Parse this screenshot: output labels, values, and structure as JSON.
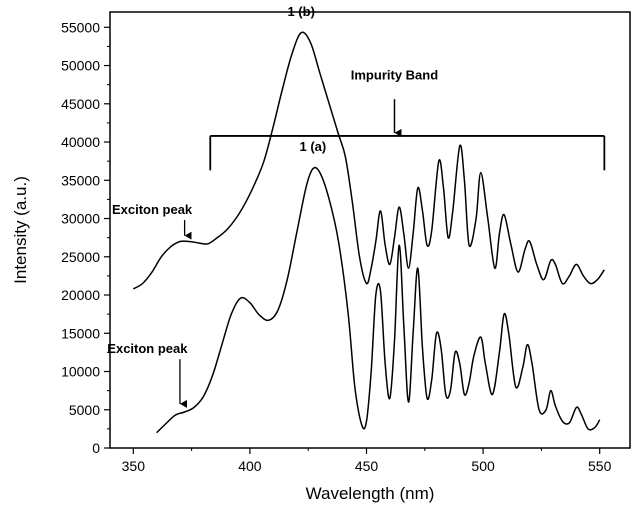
{
  "chart_data": {
    "type": "line",
    "xlabel": "Wavelength (nm)",
    "ylabel": "Intensity (a.u.)",
    "xlim": [
      340,
      563
    ],
    "ylim": [
      0,
      57000
    ],
    "x_ticks": [
      350,
      400,
      450,
      500,
      550
    ],
    "y_ticks": [
      0,
      5000,
      10000,
      15000,
      20000,
      25000,
      30000,
      35000,
      40000,
      45000,
      50000,
      55000
    ],
    "grid": false,
    "series": [
      {
        "name": "1 (a)",
        "points": [
          [
            360,
            2000
          ],
          [
            364,
            3200
          ],
          [
            368,
            4300
          ],
          [
            372,
            4700
          ],
          [
            376,
            5300
          ],
          [
            380,
            6700
          ],
          [
            384,
            9500
          ],
          [
            388,
            13500
          ],
          [
            392,
            17500
          ],
          [
            396,
            19600
          ],
          [
            400,
            19000
          ],
          [
            404,
            17400
          ],
          [
            408,
            16700
          ],
          [
            412,
            18000
          ],
          [
            416,
            22000
          ],
          [
            420,
            28000
          ],
          [
            424,
            34000
          ],
          [
            427,
            36500
          ],
          [
            430,
            36000
          ],
          [
            434,
            32500
          ],
          [
            438,
            27000
          ],
          [
            442,
            18000
          ],
          [
            445,
            8000
          ],
          [
            448,
            3000
          ],
          [
            450,
            3500
          ],
          [
            452,
            10000
          ],
          [
            454,
            20000
          ],
          [
            456,
            20500
          ],
          [
            458,
            11000
          ],
          [
            460,
            6500
          ],
          [
            462,
            14000
          ],
          [
            464,
            26500
          ],
          [
            466,
            16000
          ],
          [
            468,
            6000
          ],
          [
            470,
            15000
          ],
          [
            472,
            23500
          ],
          [
            474,
            13000
          ],
          [
            476,
            6500
          ],
          [
            478,
            9000
          ],
          [
            480,
            15000
          ],
          [
            482,
            13000
          ],
          [
            484,
            7000
          ],
          [
            486,
            7500
          ],
          [
            488,
            12500
          ],
          [
            490,
            11000
          ],
          [
            492,
            7000
          ],
          [
            494,
            8500
          ],
          [
            496,
            12000
          ],
          [
            499,
            14500
          ],
          [
            501,
            11000
          ],
          [
            504,
            7000
          ],
          [
            507,
            12500
          ],
          [
            509,
            17500
          ],
          [
            511,
            15000
          ],
          [
            514,
            8000
          ],
          [
            517,
            10500
          ],
          [
            519,
            13500
          ],
          [
            521,
            11000
          ],
          [
            524,
            5000
          ],
          [
            527,
            5000
          ],
          [
            529,
            7500
          ],
          [
            531,
            5500
          ],
          [
            534,
            3500
          ],
          [
            537,
            3300
          ],
          [
            540,
            5300
          ],
          [
            542,
            4500
          ],
          [
            545,
            2500
          ],
          [
            548,
            2700
          ],
          [
            550,
            3700
          ]
        ]
      },
      {
        "name": "1 (b)",
        "points": [
          [
            350,
            20800
          ],
          [
            354,
            21500
          ],
          [
            358,
            23000
          ],
          [
            362,
            25000
          ],
          [
            366,
            26300
          ],
          [
            370,
            27000
          ],
          [
            374,
            27000
          ],
          [
            378,
            26800
          ],
          [
            382,
            26700
          ],
          [
            386,
            27500
          ],
          [
            390,
            28500
          ],
          [
            394,
            30000
          ],
          [
            398,
            32000
          ],
          [
            402,
            34500
          ],
          [
            406,
            37500
          ],
          [
            410,
            42000
          ],
          [
            414,
            47000
          ],
          [
            418,
            51500
          ],
          [
            422,
            54300
          ],
          [
            426,
            53000
          ],
          [
            430,
            49000
          ],
          [
            434,
            45000
          ],
          [
            438,
            41000
          ],
          [
            441,
            38000
          ],
          [
            444,
            32000
          ],
          [
            447,
            25000
          ],
          [
            450,
            21500
          ],
          [
            452,
            23500
          ],
          [
            454,
            27000
          ],
          [
            456,
            31000
          ],
          [
            458,
            26500
          ],
          [
            460,
            24000
          ],
          [
            462,
            27500
          ],
          [
            464,
            31500
          ],
          [
            466,
            28000
          ],
          [
            468,
            23500
          ],
          [
            470,
            28000
          ],
          [
            472,
            34000
          ],
          [
            474,
            31000
          ],
          [
            476,
            26500
          ],
          [
            478,
            28500
          ],
          [
            481,
            37500
          ],
          [
            483,
            34000
          ],
          [
            485,
            27500
          ],
          [
            487,
            31000
          ],
          [
            490,
            39500
          ],
          [
            492,
            35000
          ],
          [
            494,
            26500
          ],
          [
            497,
            30000
          ],
          [
            499,
            36000
          ],
          [
            502,
            30000
          ],
          [
            505,
            23500
          ],
          [
            507,
            28000
          ],
          [
            509,
            30500
          ],
          [
            512,
            26500
          ],
          [
            515,
            23000
          ],
          [
            518,
            26000
          ],
          [
            520,
            27000
          ],
          [
            523,
            24000
          ],
          [
            526,
            22000
          ],
          [
            529,
            24500
          ],
          [
            531,
            24000
          ],
          [
            534,
            21500
          ],
          [
            537,
            22500
          ],
          [
            540,
            24000
          ],
          [
            543,
            22500
          ],
          [
            546,
            21500
          ],
          [
            549,
            22000
          ],
          [
            552,
            23300
          ]
        ]
      }
    ],
    "annotations": [
      {
        "text": "1 (b)",
        "x": 422,
        "y": 56500
      },
      {
        "text": "1 (a)",
        "x": 427,
        "y": 38800
      },
      {
        "text": "Impurity Band",
        "x": 462,
        "y": 48200
      },
      {
        "text": "Exciton peak",
        "x": 364,
        "y": 30600,
        "arrow_to": [
          372,
          27500
        ]
      },
      {
        "text": "Exciton peak",
        "x": 362,
        "y": 12400,
        "arrow_to": [
          370,
          5500
        ]
      }
    ],
    "impurity_band_bracket": {
      "x_start": 383,
      "x_end": 552,
      "y": 40800,
      "y_bottom": 36300,
      "arrow_x": 462,
      "arrow_from_y": 45600,
      "arrow_to_y": 41200
    }
  }
}
